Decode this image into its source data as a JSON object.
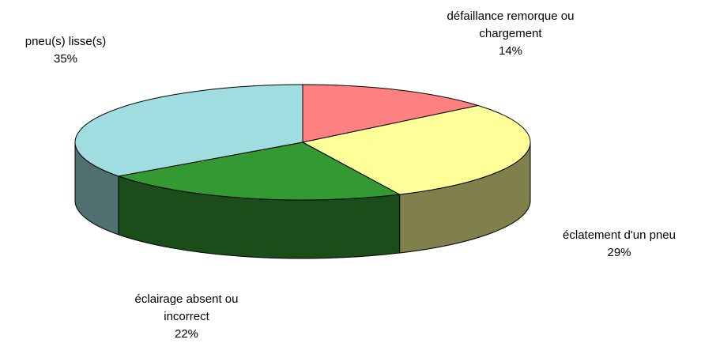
{
  "chart_data": {
    "type": "pie3d",
    "categories": [
      "défaillance remorque ou chargement",
      "éclatement d'un pneu",
      "éclairage absent ou incorrect",
      "pneu(s) lisse(s)"
    ],
    "values": [
      14,
      29,
      22,
      35
    ],
    "value_labels": [
      "14%",
      "29%",
      "22%",
      "35%"
    ],
    "colors": [
      "#ff8080",
      "#ffff99",
      "#339933",
      "#a0dde0"
    ]
  }
}
